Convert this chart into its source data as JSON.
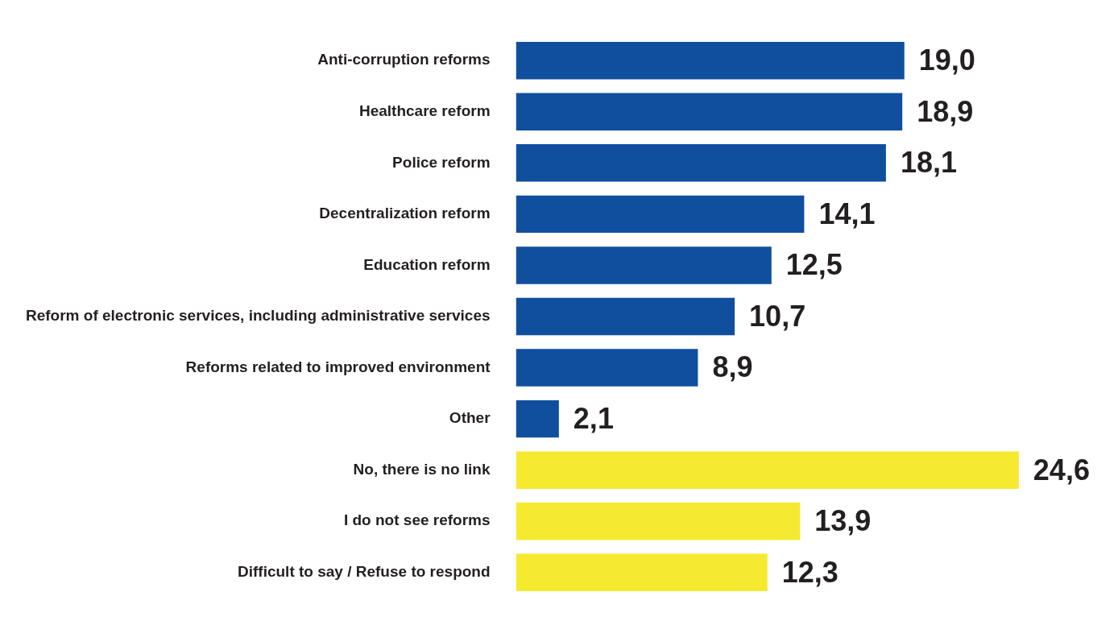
{
  "chart_data": {
    "type": "bar",
    "orientation": "horizontal",
    "tick_labels": "y",
    "categories": [
      "Anti-corruption reforms",
      "Healthcare reform",
      "Police reform",
      "Decentralization reform",
      "Education reform",
      "Reform of electronic services, including administrative services",
      "Reforms related to improved environment",
      "Other",
      "No, there is no link",
      "I do not see reforms",
      "Difficult to say / Refuse to respond"
    ],
    "values": [
      19.0,
      18.9,
      18.1,
      14.1,
      12.5,
      10.7,
      8.9,
      2.1,
      24.6,
      13.9,
      12.3
    ],
    "colors": [
      "#0f4f9e",
      "#0f4f9e",
      "#0f4f9e",
      "#0f4f9e",
      "#0f4f9e",
      "#0f4f9e",
      "#0f4f9e",
      "#0f4f9e",
      "#f5ea2f",
      "#f5ea2f",
      "#f5ea2f"
    ],
    "value_labels": [
      "19,0",
      "18,9",
      "18,1",
      "14,1",
      "12,5",
      "10,7",
      "8,9",
      "2,1",
      "24,6",
      "13,9",
      "12,3"
    ]
  }
}
